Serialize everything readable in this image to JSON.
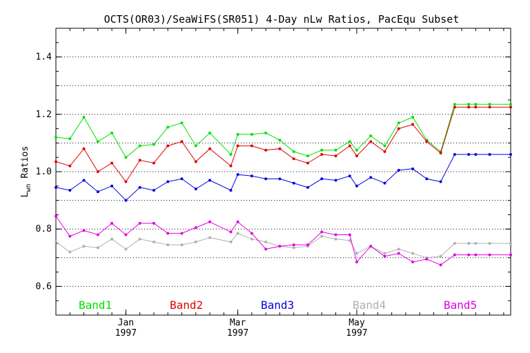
{
  "chart_data": {
    "type": "line",
    "title": "OCTS(OR03)/SeaWiFS(SR051) 4-Day nLw Ratios, PacEqu Subset",
    "ylabel_main": "L",
    "ylabel_sub": "wn",
    "ylabel_rest": " Ratios",
    "xlabel": "",
    "ylim": [
      0.5,
      1.5
    ],
    "xlim": [
      1996.9,
      1997.55
    ],
    "grid": true,
    "legend_placement": "bottom",
    "yticks": [
      {
        "value": 0.6,
        "label": "0.6"
      },
      {
        "value": 0.8,
        "label": "0.8"
      },
      {
        "value": 1.0,
        "label": "1.0"
      },
      {
        "value": 1.2,
        "label": "1.2"
      },
      {
        "value": 1.4,
        "label": "1.4"
      }
    ],
    "ygrid": [
      0.6,
      0.7,
      0.8,
      0.9,
      1.0,
      1.1,
      1.2,
      1.3,
      1.4
    ],
    "xticks": [
      {
        "value": 1997.0,
        "month": "Jan",
        "year": "1997"
      },
      {
        "value": 1997.16,
        "month": "Mar",
        "year": "1997"
      },
      {
        "value": 1997.33,
        "month": "May",
        "year": "1997"
      }
    ],
    "x": [
      1996.9,
      1996.92,
      1996.94,
      1996.96,
      1996.98,
      1997.0,
      1997.02,
      1997.04,
      1997.06,
      1997.08,
      1997.1,
      1997.12,
      1997.15,
      1997.16,
      1997.18,
      1997.2,
      1997.22,
      1997.24,
      1997.26,
      1997.28,
      1997.3,
      1997.32,
      1997.33,
      1997.35,
      1997.37,
      1997.39,
      1997.41,
      1997.43,
      1997.45,
      1997.47,
      1997.49,
      1997.5,
      1997.52,
      1997.55
    ],
    "series": [
      {
        "name": "Band1",
        "color": "#00e000",
        "values": [
          1.12,
          1.115,
          1.19,
          1.105,
          1.135,
          1.05,
          1.09,
          1.095,
          1.155,
          1.17,
          1.09,
          1.135,
          1.06,
          1.13,
          1.13,
          1.135,
          1.11,
          1.07,
          1.055,
          1.075,
          1.075,
          1.105,
          1.075,
          1.125,
          1.09,
          1.17,
          1.19,
          1.11,
          1.07,
          1.235,
          1.235,
          1.235,
          1.235,
          1.235
        ]
      },
      {
        "name": "Band2",
        "color": "#e00000",
        "values": [
          1.035,
          1.02,
          1.08,
          1.0,
          1.03,
          0.965,
          1.04,
          1.03,
          1.09,
          1.105,
          1.035,
          1.08,
          1.02,
          1.09,
          1.09,
          1.075,
          1.08,
          1.045,
          1.03,
          1.06,
          1.055,
          1.09,
          1.055,
          1.105,
          1.07,
          1.15,
          1.165,
          1.105,
          1.065,
          1.225,
          1.225,
          1.225,
          1.225,
          1.225
        ]
      },
      {
        "name": "Band3",
        "color": "#0000e0",
        "values": [
          0.945,
          0.935,
          0.97,
          0.93,
          0.95,
          0.9,
          0.945,
          0.935,
          0.965,
          0.975,
          0.94,
          0.97,
          0.935,
          0.99,
          0.985,
          0.975,
          0.975,
          0.96,
          0.945,
          0.975,
          0.97,
          0.985,
          0.95,
          0.98,
          0.96,
          1.005,
          1.01,
          0.975,
          0.965,
          1.06,
          1.06,
          1.06,
          1.06,
          1.06
        ]
      },
      {
        "name": "Band4",
        "color": "#b0b0b0",
        "values": [
          0.755,
          0.72,
          0.74,
          0.735,
          0.765,
          0.73,
          0.765,
          0.755,
          0.745,
          0.745,
          0.755,
          0.77,
          0.755,
          0.785,
          0.765,
          0.755,
          0.74,
          0.735,
          0.74,
          0.775,
          0.765,
          0.76,
          0.715,
          0.74,
          0.715,
          0.73,
          0.715,
          0.7,
          0.705,
          0.75,
          0.75,
          0.75,
          0.75,
          0.75
        ]
      },
      {
        "name": "Band5",
        "color": "#e000e0",
        "values": [
          0.845,
          0.775,
          0.795,
          0.78,
          0.82,
          0.78,
          0.82,
          0.82,
          0.785,
          0.785,
          0.805,
          0.825,
          0.79,
          0.825,
          0.785,
          0.73,
          0.74,
          0.745,
          0.745,
          0.79,
          0.78,
          0.78,
          0.685,
          0.74,
          0.705,
          0.715,
          0.685,
          0.695,
          0.675,
          0.71,
          0.71,
          0.71,
          0.71,
          0.71
        ]
      }
    ]
  }
}
